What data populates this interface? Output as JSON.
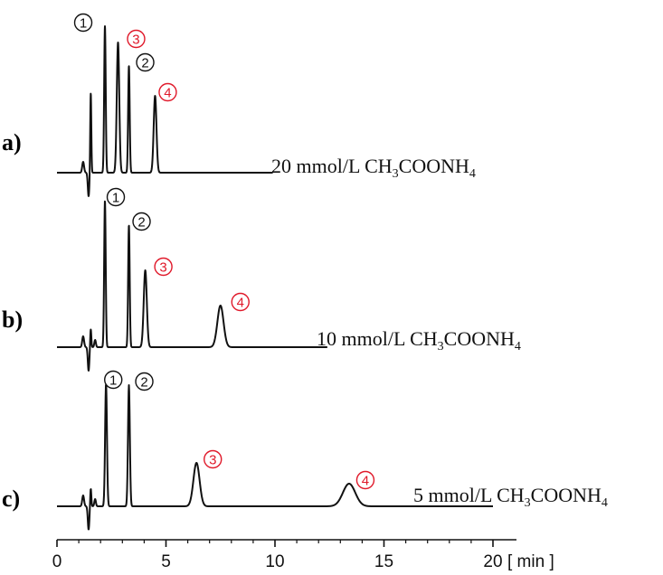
{
  "chart_data": {
    "type": "line",
    "title": "",
    "xlabel": "",
    "unit": "[ min ]",
    "xlim": [
      0,
      20
    ],
    "xticks": [
      "0",
      "5",
      "10",
      "15",
      "20"
    ],
    "peak_names": [
      "1",
      "2",
      "3",
      "4"
    ],
    "highlight_color": "#e0192a",
    "line_color": "#111111",
    "traces": [
      {
        "label": "a)",
        "cond_prefix": "20 mmol/L CH",
        "cond_sub1": "3",
        "cond_mid": "COONH",
        "cond_sub2": "4",
        "x_end": 9.9,
        "peaks": [
          {
            "id": "1",
            "t": 2.2,
            "h": 162,
            "w": 0.05,
            "highlight": false
          },
          {
            "id": "2",
            "t": 3.3,
            "h": 118,
            "w": 0.05,
            "highlight": false
          },
          {
            "id": "3",
            "t": 2.8,
            "h": 144,
            "w": 0.08,
            "highlight": true
          },
          {
            "id": "4",
            "t": 4.5,
            "h": 85,
            "w": 0.09,
            "highlight": true
          }
        ]
      },
      {
        "label": "b)",
        "cond_prefix": "10 mmol/L CH",
        "cond_sub1": "3",
        "cond_mid": "COONH",
        "cond_sub2": "4",
        "x_end": 12.4,
        "peaks": [
          {
            "id": "1",
            "t": 2.2,
            "h": 162,
            "w": 0.05,
            "highlight": false
          },
          {
            "id": "2",
            "t": 3.3,
            "h": 135,
            "w": 0.05,
            "highlight": false
          },
          {
            "id": "3",
            "t": 4.05,
            "h": 85,
            "w": 0.1,
            "highlight": true
          },
          {
            "id": "4",
            "t": 7.5,
            "h": 46,
            "w": 0.2,
            "highlight": true
          }
        ]
      },
      {
        "label": "c)",
        "cond_prefix": "5 mmol/L CH",
        "cond_sub1": "3",
        "cond_mid": "COONH",
        "cond_sub2": "4",
        "x_end": 20,
        "peaks": [
          {
            "id": "1",
            "t": 2.25,
            "h": 136,
            "w": 0.06,
            "highlight": false
          },
          {
            "id": "2",
            "t": 3.3,
            "h": 134,
            "w": 0.06,
            "highlight": false
          },
          {
            "id": "3",
            "t": 6.4,
            "h": 48,
            "w": 0.2,
            "highlight": true
          },
          {
            "id": "4",
            "t": 13.4,
            "h": 25,
            "w": 0.4,
            "highlight": true
          }
        ]
      }
    ]
  }
}
